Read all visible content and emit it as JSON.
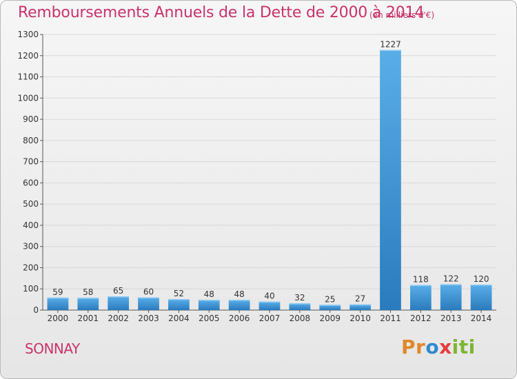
{
  "header": {
    "title": "Remboursements Annuels de la Dette de 2000 à 2014",
    "subtitle": "(en milliers d'€)"
  },
  "footer": {
    "town": "SONNAY",
    "logo": "Proxiti"
  },
  "colors": {
    "title": "#c8336a",
    "bar_light": "#5aaee8",
    "bar_dark": "#2a7bbd",
    "grid": "#d8d8d8"
  },
  "chart_data": {
    "type": "bar",
    "title": "Remboursements Annuels de la Dette de 2000 à 2014",
    "subtitle": "(en milliers d'€)",
    "categories": [
      "2000",
      "2001",
      "2002",
      "2003",
      "2004",
      "2005",
      "2006",
      "2007",
      "2008",
      "2009",
      "2010",
      "2011",
      "2012",
      "2013",
      "2014"
    ],
    "values": [
      59,
      58,
      65,
      60,
      52,
      48,
      48,
      40,
      32,
      25,
      27,
      1227,
      118,
      122,
      120
    ],
    "ylim": [
      0,
      1300
    ],
    "yticks": [
      0,
      100,
      200,
      300,
      400,
      500,
      600,
      700,
      800,
      900,
      1000,
      1100,
      1200,
      1300
    ],
    "grid": true,
    "show_value_labels": true
  }
}
